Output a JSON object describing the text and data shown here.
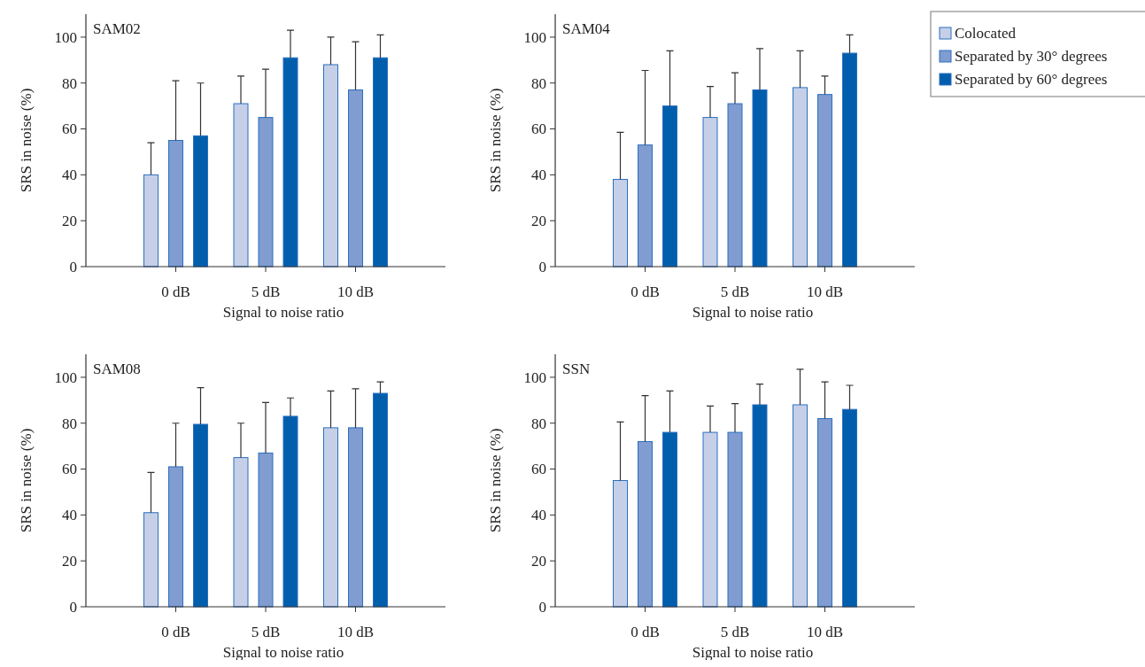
{
  "chart_data": [
    {
      "type": "bar",
      "title": "SAM02",
      "xlabel": "Signal to noise ratio",
      "ylabel": "SRS in noise (%)",
      "categories": [
        "0 dB",
        "5 dB",
        "10 dB"
      ],
      "ylim": [
        0,
        110
      ],
      "yticks": [
        0,
        20,
        40,
        60,
        80,
        100
      ],
      "legend": false,
      "series": [
        {
          "color": "#c5d0e8",
          "values": [
            40,
            71,
            88
          ],
          "errors": [
            [
              40,
              54
            ],
            [
              71,
              83
            ],
            [
              88,
              100
            ]
          ]
        },
        {
          "color": "#809cd0",
          "values": [
            55,
            65,
            77
          ],
          "errors": [
            [
              55,
              81
            ],
            [
              65,
              86
            ],
            [
              77,
              98
            ]
          ]
        },
        {
          "color": "#005eac",
          "values": [
            57,
            91,
            91
          ],
          "errors": [
            [
              57,
              80
            ],
            [
              91,
              103
            ],
            [
              91,
              101
            ]
          ]
        }
      ]
    },
    {
      "type": "bar",
      "title": "SAM04",
      "xlabel": "Signal to noise ratio",
      "ylabel": "SRS in noise (%)",
      "categories": [
        "0 dB",
        "5 dB",
        "10 dB"
      ],
      "ylim": [
        0,
        110
      ],
      "yticks": [
        0,
        20,
        40,
        60,
        80,
        100
      ],
      "legend": "top right",
      "series": [
        {
          "name": "Colocated",
          "color": "#c5d0e8",
          "values": [
            38,
            65,
            78
          ],
          "errors": [
            [
              38,
              58.5
            ],
            [
              65,
              78.5
            ],
            [
              78,
              94
            ]
          ]
        },
        {
          "name": "Separated by 30° degrees",
          "color": "#809cd0",
          "values": [
            53,
            71,
            75
          ],
          "errors": [
            [
              53,
              85.5
            ],
            [
              71,
              84.5
            ],
            [
              75,
              83
            ]
          ]
        },
        {
          "name": "Separated by 60° degrees",
          "color": "#005eac",
          "values": [
            70,
            77,
            93
          ],
          "errors": [
            [
              70,
              94
            ],
            [
              77,
              95
            ],
            [
              93,
              101
            ]
          ]
        }
      ]
    },
    {
      "type": "bar",
      "title": "SAM08",
      "xlabel": "Signal to noise ratio",
      "ylabel": "SRS in noise (%)",
      "categories": [
        "0 dB",
        "5 dB",
        "10 dB"
      ],
      "ylim": [
        0,
        110
      ],
      "yticks": [
        0,
        20,
        40,
        60,
        80,
        100
      ],
      "legend": false,
      "series": [
        {
          "color": "#c5d0e8",
          "values": [
            41,
            65,
            78
          ],
          "errors": [
            [
              41,
              58.5
            ],
            [
              65,
              80
            ],
            [
              78,
              94
            ]
          ]
        },
        {
          "color": "#809cd0",
          "values": [
            61,
            67,
            78
          ],
          "errors": [
            [
              61,
              80
            ],
            [
              67,
              89
            ],
            [
              78,
              95
            ]
          ]
        },
        {
          "color": "#005eac",
          "values": [
            79.5,
            83,
            93
          ],
          "errors": [
            [
              79.5,
              95.5
            ],
            [
              83,
              91
            ],
            [
              93,
              98
            ]
          ]
        }
      ]
    },
    {
      "type": "bar",
      "title": "SSN",
      "xlabel": "Signal to noise ratio",
      "ylabel": "SRS in noise (%)",
      "categories": [
        "0 dB",
        "5 dB",
        "10 dB"
      ],
      "ylim": [
        0,
        110
      ],
      "yticks": [
        0,
        20,
        40,
        60,
        80,
        100
      ],
      "legend": false,
      "series": [
        {
          "color": "#c5d0e8",
          "values": [
            55,
            76,
            88
          ],
          "errors": [
            [
              55,
              80.5
            ],
            [
              76,
              87.5
            ],
            [
              88,
              103.5
            ]
          ]
        },
        {
          "color": "#809cd0",
          "values": [
            72,
            76,
            82
          ],
          "errors": [
            [
              72,
              92
            ],
            [
              76,
              88.5
            ],
            [
              82,
              98
            ]
          ]
        },
        {
          "color": "#005eac",
          "values": [
            76,
            88,
            86
          ],
          "errors": [
            [
              76,
              94
            ],
            [
              88,
              97
            ],
            [
              86,
              96.5
            ]
          ]
        }
      ]
    }
  ]
}
